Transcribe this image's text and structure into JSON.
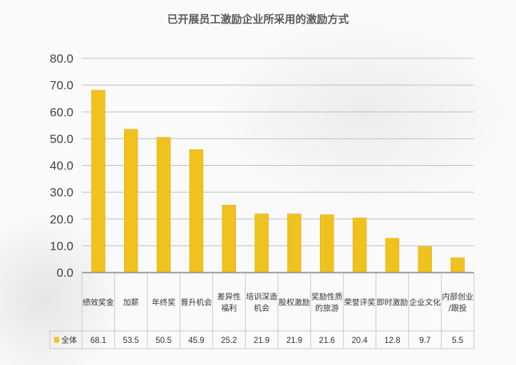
{
  "chart_data": {
    "type": "bar",
    "title": "已开展员工激励企业所采用的激励方式",
    "categories": [
      [
        "绩效奖金"
      ],
      [
        "加薪"
      ],
      [
        "年终奖"
      ],
      [
        "晋升机会"
      ],
      [
        "差异性",
        "福利"
      ],
      [
        "培训深造",
        "机会"
      ],
      [
        "股权激励"
      ],
      [
        "奖励性质",
        "的旅游"
      ],
      [
        "荣誉评奖"
      ],
      [
        "即时激励"
      ],
      [
        "企业文化"
      ],
      [
        "内部创业",
        "/跟投"
      ]
    ],
    "series": [
      {
        "name": "全体",
        "values": [
          68.1,
          53.5,
          50.5,
          45.9,
          25.2,
          21.9,
          21.9,
          21.6,
          20.4,
          12.8,
          9.7,
          5.5
        ],
        "color": "#F0C21E"
      }
    ],
    "ylim": [
      0,
      80
    ],
    "yticks": [
      "0.0",
      "10.0",
      "20.0",
      "30.0",
      "40.0",
      "50.0",
      "60.0",
      "70.0",
      "80.0"
    ],
    "grid": true,
    "legend": "data-table-left"
  }
}
